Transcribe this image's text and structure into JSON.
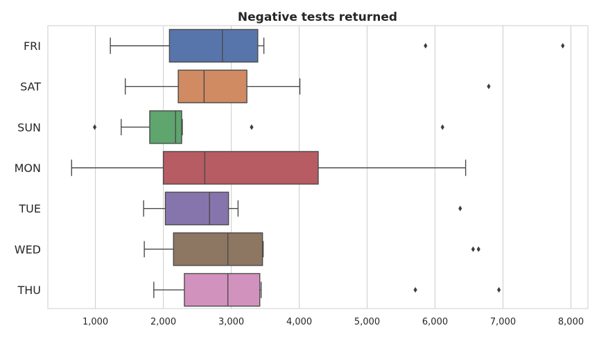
{
  "chart_data": {
    "type": "box",
    "title": "Negative tests returned",
    "xlabel": "",
    "ylabel": "",
    "orientation": "horizontal",
    "xlim": [
      300,
      8250
    ],
    "xticks": [
      1000,
      2000,
      3000,
      4000,
      5000,
      6000,
      7000,
      8000
    ],
    "xtick_labels": [
      "1,000",
      "2,000",
      "3,000",
      "4,000",
      "5,000",
      "6,000",
      "7,000",
      "8,000"
    ],
    "grid": true,
    "categories": [
      "FRI",
      "SAT",
      "SUN",
      "MON",
      "TUE",
      "WED",
      "THU"
    ],
    "colors": [
      "#5875ab",
      "#d08b62",
      "#5ea56e",
      "#b65c62",
      "#8675ad",
      "#8d7762",
      "#d292be"
    ],
    "boxes": [
      {
        "category": "FRI",
        "whisker_low": 1220,
        "q1": 2090,
        "median": 2870,
        "q3": 3390,
        "whisker_high": 3480,
        "outliers": [
          5860,
          7880
        ]
      },
      {
        "category": "SAT",
        "whisker_low": 1440,
        "q1": 2220,
        "median": 2600,
        "q3": 3230,
        "whisker_high": 4010,
        "outliers": [
          6790
        ]
      },
      {
        "category": "SUN",
        "whisker_low": 1380,
        "q1": 1800,
        "median": 2180,
        "q3": 2270,
        "whisker_high": 2280,
        "outliers": [
          990,
          3300,
          6110
        ]
      },
      {
        "category": "MON",
        "whisker_low": 650,
        "q1": 2000,
        "median": 2610,
        "q3": 4280,
        "whisker_high": 6450,
        "outliers": []
      },
      {
        "category": "TUE",
        "whisker_low": 1710,
        "q1": 2030,
        "median": 2680,
        "q3": 2960,
        "whisker_high": 3100,
        "outliers": [
          6370
        ]
      },
      {
        "category": "WED",
        "whisker_low": 1720,
        "q1": 2150,
        "median": 2950,
        "q3": 3460,
        "whisker_high": 3470,
        "outliers": [
          6560,
          6640
        ]
      },
      {
        "category": "THU",
        "whisker_low": 1860,
        "q1": 2310,
        "median": 2950,
        "q3": 3420,
        "whisker_high": 3440,
        "outliers": [
          5710,
          6940
        ]
      }
    ]
  }
}
